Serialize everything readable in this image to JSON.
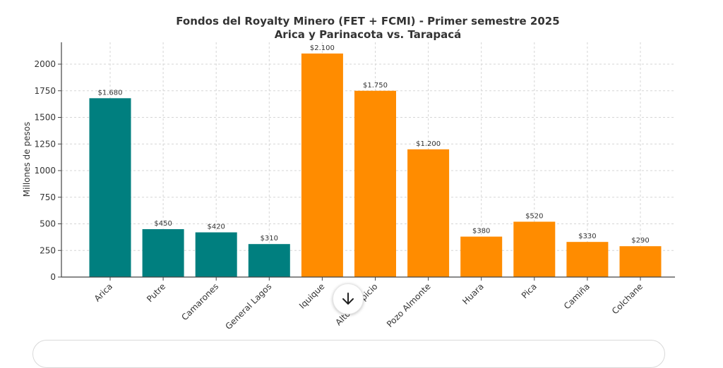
{
  "chart_data": {
    "type": "bar",
    "title": "Fondos del Royalty Minero (FET + FCMI) - Primer semestre 2025",
    "subtitle": "Arica y Parinacota vs. Tarapacá",
    "xlabel": "",
    "ylabel": "Millones de pesos",
    "ylim": [
      0,
      2200
    ],
    "yticks": [
      "0",
      "250",
      "500",
      "750",
      "1000",
      "1250",
      "1500",
      "1750",
      "2000"
    ],
    "grid": true,
    "categories": [
      "Arica",
      "Putre",
      "Camarones",
      "General Lagos",
      "Iquique",
      "Alto Hospicio",
      "Pozo Almonte",
      "Huara",
      "Pica",
      "Camiña",
      "Colchane"
    ],
    "values": [
      1680,
      450,
      420,
      310,
      2100,
      1750,
      1200,
      380,
      520,
      330,
      290
    ],
    "data_labels": [
      "$1.680",
      "$450",
      "$420",
      "$310",
      "$2.100",
      "$1.750",
      "$1.200",
      "$380",
      "$520",
      "$330",
      "$290"
    ],
    "groups": [
      {
        "color": "#007f7f",
        "categories": [
          "Arica",
          "Putre",
          "Camarones",
          "General Lagos"
        ]
      },
      {
        "color": "#ff8c00",
        "categories": [
          "Iquique",
          "Alto Hospicio",
          "Pozo Almonte",
          "Huara",
          "Pica",
          "Camiña",
          "Colchane"
        ]
      }
    ]
  },
  "ui": {
    "scroll_down_icon": "arrow-down-icon"
  }
}
